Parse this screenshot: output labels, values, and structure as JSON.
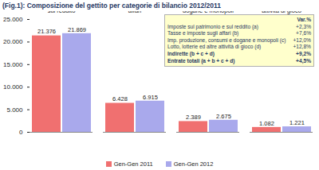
{
  "chart_data": {
    "type": "bar",
    "title": "(Fig.1): Composizione del gettito per categorie di bilancio 2012/2011",
    "categories": [
      "Imposte sul patrimonio e sul reddito",
      "Tasse e imposte sugli affari",
      "Imposte sulla produzione, consumi e dogane e monopoli",
      "Lotto, lotterie ed altre attività di gioco"
    ],
    "series": [
      {
        "name": "Gen-Gen 2011",
        "color": "#f07070",
        "values": [
          21376,
          6428,
          2389,
          1082
        ],
        "value_labels": [
          "21.376",
          "6.428",
          "2.389",
          "1.082"
        ]
      },
      {
        "name": "Gen-Gen 2012",
        "color": "#a9a9ec",
        "values": [
          21869,
          6915,
          2675,
          1221
        ],
        "value_labels": [
          "21.869",
          "6.915",
          "2.675",
          "1.221"
        ]
      }
    ],
    "ylim": [
      0,
      25000
    ],
    "yticks": [
      0,
      {
        "value": 5000,
        "label": "5.000"
      },
      {
        "value": 10000,
        "label": "10.000"
      },
      {
        "value": 15000,
        "label": "15.000"
      },
      {
        "value": 20000,
        "label": "20.000"
      },
      {
        "value": 25000,
        "label": "25.000"
      }
    ],
    "grid": false,
    "data_labels": true,
    "legend": "bottom",
    "annotations": {
      "header": "Var.%",
      "rows": [
        [
          "Imposte sul patrimonio e sul reddito (a)",
          "+2,3%"
        ],
        [
          "Tasse e imposte sugli affari (b)",
          "+7,6%"
        ],
        [
          "Imp. produzione, consumi e dogane e monopoli (c)",
          "+12,0%"
        ],
        [
          "Lotto, lotterie ed altre attività di gioco (d)",
          "+12,8%"
        ],
        [
          "Indirette (b + c + d)",
          "+9,2%"
        ],
        [
          "Entrate totali (a + b + c + d)",
          "+4,5%"
        ]
      ]
    }
  }
}
